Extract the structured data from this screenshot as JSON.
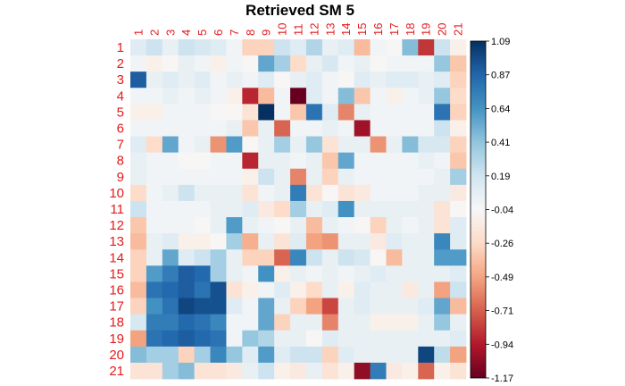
{
  "chart_data": {
    "type": "heatmap",
    "title": "Retrieved SM  5",
    "rows": [
      "1",
      "2",
      "3",
      "4",
      "5",
      "6",
      "7",
      "8",
      "9",
      "10",
      "11",
      "12",
      "13",
      "14",
      "15",
      "16",
      "17",
      "18",
      "19",
      "20",
      "21"
    ],
    "cols": [
      "1",
      "2",
      "3",
      "4",
      "5",
      "6",
      "7",
      "8",
      "9",
      "10",
      "11",
      "12",
      "13",
      "14",
      "15",
      "16",
      "17",
      "18",
      "19",
      "20",
      "21"
    ],
    "colorbar_ticks": [
      "1.09",
      "0.87",
      "0.64",
      "0.41",
      "0.19",
      "-0.04",
      "-0.26",
      "-0.49",
      "-0.71",
      "-0.94",
      "-1.17"
    ],
    "color_range": [
      -1.17,
      1.09
    ],
    "colors": {
      "positive_end": "#053061",
      "negative_end": "#67001f",
      "label": "#e41a1c"
    },
    "values": [
      [
        0.1,
        0.2,
        0.05,
        0.2,
        0.15,
        0.1,
        0.0,
        -0.3,
        -0.3,
        0.2,
        0.1,
        0.3,
        0.05,
        0.1,
        -0.4,
        0.0,
        -0.05,
        0.45,
        -0.85,
        0.2,
        -0.1
      ],
      [
        0.0,
        -0.1,
        -0.05,
        0.05,
        0.0,
        -0.1,
        0.0,
        -0.05,
        0.55,
        0.35,
        -0.25,
        0.05,
        0.15,
        0.0,
        0.05,
        -0.05,
        0.0,
        0.0,
        0.0,
        0.4,
        -0.35
      ],
      [
        0.9,
        0.05,
        0.1,
        0.05,
        0.1,
        0.0,
        0.05,
        0.0,
        0.1,
        -0.05,
        0.05,
        0.1,
        0.0,
        -0.05,
        0.1,
        0.05,
        0.1,
        0.1,
        0.05,
        0.1,
        -0.3
      ],
      [
        0.0,
        0.0,
        0.05,
        0.0,
        0.05,
        0.0,
        -0.1,
        -0.9,
        -0.4,
        0.0,
        -1.17,
        0.1,
        0.0,
        0.45,
        -0.35,
        0.0,
        -0.1,
        0.0,
        0.05,
        0.4,
        -0.25
      ],
      [
        -0.1,
        -0.1,
        0.0,
        0.0,
        0.0,
        -0.05,
        -0.05,
        -0.2,
        1.09,
        0.0,
        -0.35,
        0.8,
        0.1,
        -0.6,
        0.05,
        0.0,
        0.0,
        0.0,
        0.0,
        0.8,
        -0.3
      ],
      [
        0.0,
        0.0,
        0.0,
        0.0,
        0.0,
        0.0,
        0.05,
        -0.35,
        0.05,
        -0.7,
        0.0,
        0.0,
        0.05,
        0.0,
        -1.0,
        0.0,
        0.0,
        0.0,
        0.0,
        0.2,
        -0.1
      ],
      [
        0.1,
        -0.25,
        0.55,
        0.0,
        0.05,
        -0.55,
        0.6,
        -0.05,
        0.05,
        0.35,
        0.05,
        0.4,
        -0.2,
        0.05,
        0.05,
        -0.55,
        0.05,
        0.45,
        0.15,
        0.15,
        -0.3
      ],
      [
        0.05,
        0.0,
        0.0,
        -0.05,
        -0.05,
        0.0,
        0.0,
        -0.9,
        0.05,
        0.05,
        0.0,
        0.05,
        -0.35,
        0.55,
        0.0,
        0.0,
        0.0,
        0.0,
        0.05,
        0.0,
        -0.35
      ],
      [
        0.05,
        0.0,
        0.0,
        0.0,
        0.0,
        0.0,
        0.0,
        -0.1,
        0.2,
        0.05,
        -0.6,
        0.05,
        -0.3,
        0.05,
        0.0,
        0.0,
        0.0,
        0.0,
        0.0,
        0.05,
        0.35
      ],
      [
        -0.25,
        0.0,
        0.05,
        0.2,
        0.05,
        0.05,
        0.05,
        -0.2,
        0.0,
        0.05,
        0.75,
        -0.2,
        -0.05,
        -0.2,
        -0.15,
        0.0,
        0.0,
        0.0,
        0.05,
        0.05,
        -0.15
      ],
      [
        0.2,
        0.0,
        0.0,
        0.0,
        0.0,
        0.05,
        0.05,
        0.1,
        -0.15,
        -0.25,
        0.35,
        0.05,
        0.1,
        0.65,
        0.05,
        0.05,
        0.05,
        0.05,
        0.05,
        -0.2,
        -0.05
      ],
      [
        -0.35,
        0.0,
        0.0,
        0.0,
        -0.05,
        0.05,
        0.6,
        0.05,
        0.0,
        -0.05,
        0.05,
        -0.4,
        0.05,
        0.0,
        -0.05,
        -0.3,
        0.05,
        0.0,
        0.05,
        -0.2,
        0.1
      ],
      [
        -0.4,
        0.05,
        0.1,
        -0.1,
        -0.1,
        -0.05,
        0.35,
        -0.45,
        0.05,
        -0.2,
        0.1,
        -0.5,
        -0.55,
        0.05,
        0.05,
        -0.15,
        0.1,
        0.05,
        0.05,
        0.7,
        0.1
      ],
      [
        -0.3,
        0.05,
        0.55,
        0.1,
        0.2,
        0.35,
        0.05,
        -0.3,
        -0.3,
        -0.7,
        0.7,
        0.2,
        0.05,
        0.2,
        0.15,
        -0.05,
        -0.4,
        0.05,
        0.05,
        0.6,
        0.6
      ],
      [
        -0.3,
        0.6,
        0.75,
        0.9,
        0.85,
        0.35,
        0.05,
        0.0,
        0.65,
        -0.1,
        0.05,
        0.0,
        0.05,
        0.0,
        0.05,
        0.1,
        0.05,
        0.05,
        0.05,
        0.05,
        0.1
      ],
      [
        -0.4,
        0.8,
        0.85,
        0.9,
        0.8,
        0.95,
        -0.2,
        -0.1,
        0.0,
        0.1,
        -0.1,
        -0.25,
        0.05,
        -0.1,
        0.1,
        0.05,
        0.05,
        -0.15,
        0.05,
        -0.5,
        0.2
      ],
      [
        -0.3,
        0.65,
        0.8,
        1.0,
        0.95,
        0.95,
        0.1,
        0.0,
        0.55,
        0.05,
        -0.3,
        -0.5,
        -0.8,
        0.05,
        0.1,
        0.05,
        0.05,
        0.05,
        0.1,
        0.55,
        -0.4
      ],
      [
        0.15,
        0.75,
        0.75,
        0.85,
        0.8,
        0.7,
        0.0,
        0.0,
        0.55,
        -0.3,
        0.05,
        0.05,
        -0.6,
        0.05,
        0.05,
        -0.1,
        -0.1,
        -0.1,
        0.05,
        0.4,
        0.05
      ],
      [
        -0.5,
        0.8,
        0.85,
        0.9,
        0.85,
        0.8,
        0.0,
        0.4,
        0.3,
        0.05,
        0.05,
        -0.05,
        0.1,
        0.05,
        0.05,
        0.05,
        0.05,
        0.05,
        0.05,
        0.05,
        0.1
      ],
      [
        0.45,
        0.35,
        0.35,
        -0.3,
        0.35,
        0.7,
        0.4,
        0.1,
        0.6,
        0.1,
        0.2,
        0.2,
        -0.3,
        0.1,
        0.05,
        0.05,
        0.05,
        0.05,
        1.0,
        0.25,
        -0.5
      ],
      [
        -0.2,
        -0.2,
        0.35,
        0.45,
        -0.2,
        -0.2,
        -0.15,
        0.05,
        0.2,
        -0.1,
        -0.15,
        0.05,
        -0.2,
        -0.1,
        -1.05,
        0.75,
        -0.15,
        -0.1,
        -0.7,
        -0.1,
        -0.2
      ]
    ]
  }
}
